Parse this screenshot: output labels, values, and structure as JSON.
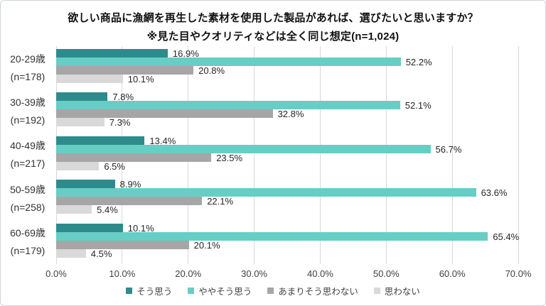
{
  "title": "欲しい商品に漁網を再生した素材を使用した製品があれば、選びたいと思いますか？",
  "subtitle": "※見た目やクオリティなどは全く同じ想定(n=1,024)",
  "chart_data": {
    "type": "bar",
    "orientation": "horizontal",
    "categories": [
      "20-29歳",
      "30-39歳",
      "40-49歳",
      "50-59歳",
      "60-69歳"
    ],
    "category_sublabels": [
      "(n=178)",
      "(n=192)",
      "(n=217)",
      "(n=258)",
      "(n=179)"
    ],
    "series": [
      {
        "name": "そう思う",
        "color": "#2E8B8B",
        "values": [
          16.9,
          7.8,
          13.4,
          8.9,
          10.1
        ]
      },
      {
        "name": "ややそう思う",
        "color": "#67CEC5",
        "values": [
          52.2,
          52.1,
          56.7,
          63.6,
          65.4
        ]
      },
      {
        "name": "あまりそう思わない",
        "color": "#A6A6A6",
        "values": [
          20.8,
          32.8,
          23.5,
          22.1,
          20.1
        ]
      },
      {
        "name": "思わない",
        "color": "#D9D9D9",
        "values": [
          10.1,
          7.3,
          6.5,
          5.4,
          4.5
        ]
      }
    ],
    "xlim": [
      0,
      70
    ],
    "x_ticks": [
      "0.0%",
      "10.0%",
      "20.0%",
      "30.0%",
      "40.0%",
      "50.0%",
      "60.0%",
      "70.0%"
    ],
    "value_label_suffix": "%",
    "grid": true,
    "legend_position": "bottom",
    "colors": {
      "gridline": "#d9d9d9",
      "label_text": "#262626",
      "axis_text": "#404040"
    }
  }
}
